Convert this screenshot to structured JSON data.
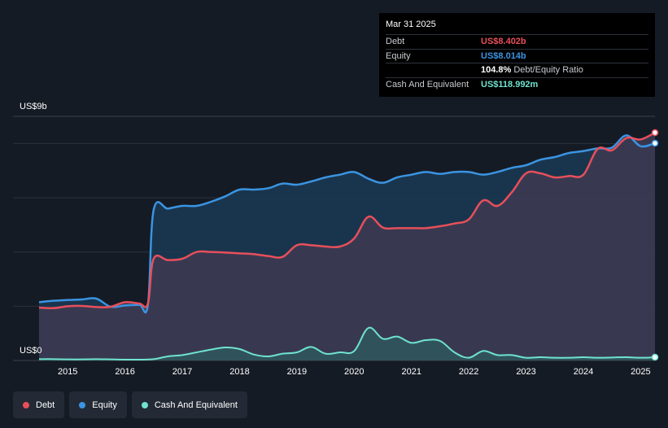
{
  "tooltip": {
    "date": "Mar 31 2025",
    "debt_label": "Debt",
    "debt_value": "US$8.402b",
    "equity_label": "Equity",
    "equity_value": "US$8.014b",
    "ratio_value": "104.8%",
    "ratio_label": "Debt/Equity Ratio",
    "cash_label": "Cash And Equivalent",
    "cash_value": "US$118.992m"
  },
  "legend": {
    "debt": "Debt",
    "equity": "Equity",
    "cash": "Cash And Equivalent"
  },
  "colors": {
    "debt": "#e84f5b",
    "equity": "#3b94e2",
    "cash": "#6fe3cf",
    "background": "#151b24"
  },
  "chart_data": {
    "type": "area",
    "y_top_label": "US$9b",
    "y_bottom_label": "US$0",
    "ylim": [
      0,
      9
    ],
    "xlim": [
      2014.5,
      2025.25
    ],
    "x_ticks": [
      "2015",
      "2016",
      "2017",
      "2018",
      "2019",
      "2020",
      "2021",
      "2022",
      "2023",
      "2024",
      "2025"
    ],
    "grid": true,
    "legend_position": "bottom-left",
    "series": [
      {
        "name": "Debt",
        "x": [
          2014.5,
          2014.75,
          2015.0,
          2015.25,
          2015.5,
          2015.75,
          2016.0,
          2016.25,
          2016.4,
          2016.5,
          2016.75,
          2017.0,
          2017.25,
          2017.5,
          2017.75,
          2018.0,
          2018.25,
          2018.5,
          2018.75,
          2019.0,
          2019.25,
          2019.5,
          2019.75,
          2020.0,
          2020.25,
          2020.5,
          2020.75,
          2021.0,
          2021.25,
          2021.5,
          2021.75,
          2022.0,
          2022.25,
          2022.5,
          2022.75,
          2023.0,
          2023.25,
          2023.5,
          2023.75,
          2024.0,
          2024.25,
          2024.5,
          2024.75,
          2025.0,
          2025.25
        ],
        "values": [
          1.95,
          1.93,
          2.0,
          2.01,
          1.97,
          1.98,
          2.15,
          2.1,
          2.1,
          3.75,
          3.7,
          3.75,
          4.0,
          4.0,
          3.98,
          3.95,
          3.92,
          3.85,
          3.82,
          4.25,
          4.25,
          4.2,
          4.2,
          4.5,
          5.3,
          4.9,
          4.88,
          4.88,
          4.88,
          4.95,
          5.05,
          5.2,
          5.9,
          5.7,
          6.2,
          6.9,
          6.9,
          6.75,
          6.8,
          6.85,
          7.8,
          7.75,
          8.2,
          8.15,
          8.4
        ]
      },
      {
        "name": "Equity",
        "x": [
          2014.5,
          2014.75,
          2015.0,
          2015.25,
          2015.5,
          2015.75,
          2016.0,
          2016.25,
          2016.4,
          2016.5,
          2016.75,
          2017.0,
          2017.25,
          2017.5,
          2017.75,
          2018.0,
          2018.25,
          2018.5,
          2018.75,
          2019.0,
          2019.25,
          2019.5,
          2019.75,
          2020.0,
          2020.25,
          2020.5,
          2020.75,
          2021.0,
          2021.25,
          2021.5,
          2021.75,
          2022.0,
          2022.25,
          2022.5,
          2022.75,
          2023.0,
          2023.25,
          2023.5,
          2023.75,
          2024.0,
          2024.25,
          2024.5,
          2024.75,
          2025.0,
          2025.25
        ],
        "values": [
          2.15,
          2.2,
          2.23,
          2.25,
          2.28,
          1.98,
          2.03,
          2.05,
          2.05,
          5.55,
          5.6,
          5.7,
          5.7,
          5.85,
          6.05,
          6.3,
          6.3,
          6.35,
          6.52,
          6.48,
          6.6,
          6.75,
          6.85,
          6.95,
          6.7,
          6.55,
          6.75,
          6.85,
          6.95,
          6.88,
          6.95,
          6.95,
          6.85,
          6.95,
          7.1,
          7.2,
          7.4,
          7.5,
          7.65,
          7.72,
          7.82,
          7.85,
          8.3,
          7.9,
          8.01
        ]
      },
      {
        "name": "Cash And Equivalent",
        "x": [
          2014.5,
          2014.75,
          2015.0,
          2015.25,
          2015.5,
          2015.75,
          2016.0,
          2016.25,
          2016.5,
          2016.75,
          2017.0,
          2017.25,
          2017.5,
          2017.75,
          2018.0,
          2018.25,
          2018.5,
          2018.75,
          2019.0,
          2019.25,
          2019.5,
          2019.75,
          2020.0,
          2020.25,
          2020.5,
          2020.75,
          2021.0,
          2021.25,
          2021.5,
          2021.75,
          2022.0,
          2022.25,
          2022.5,
          2022.75,
          2023.0,
          2023.25,
          2023.5,
          2023.75,
          2024.0,
          2024.25,
          2024.5,
          2024.75,
          2025.0,
          2025.25
        ],
        "values": [
          0.05,
          0.05,
          0.04,
          0.04,
          0.05,
          0.04,
          0.03,
          0.03,
          0.05,
          0.15,
          0.2,
          0.3,
          0.4,
          0.48,
          0.42,
          0.22,
          0.15,
          0.25,
          0.3,
          0.5,
          0.25,
          0.3,
          0.35,
          1.2,
          0.8,
          0.88,
          0.65,
          0.75,
          0.72,
          0.3,
          0.1,
          0.35,
          0.2,
          0.2,
          0.1,
          0.12,
          0.1,
          0.1,
          0.12,
          0.1,
          0.11,
          0.12,
          0.1,
          0.119
        ]
      }
    ]
  }
}
